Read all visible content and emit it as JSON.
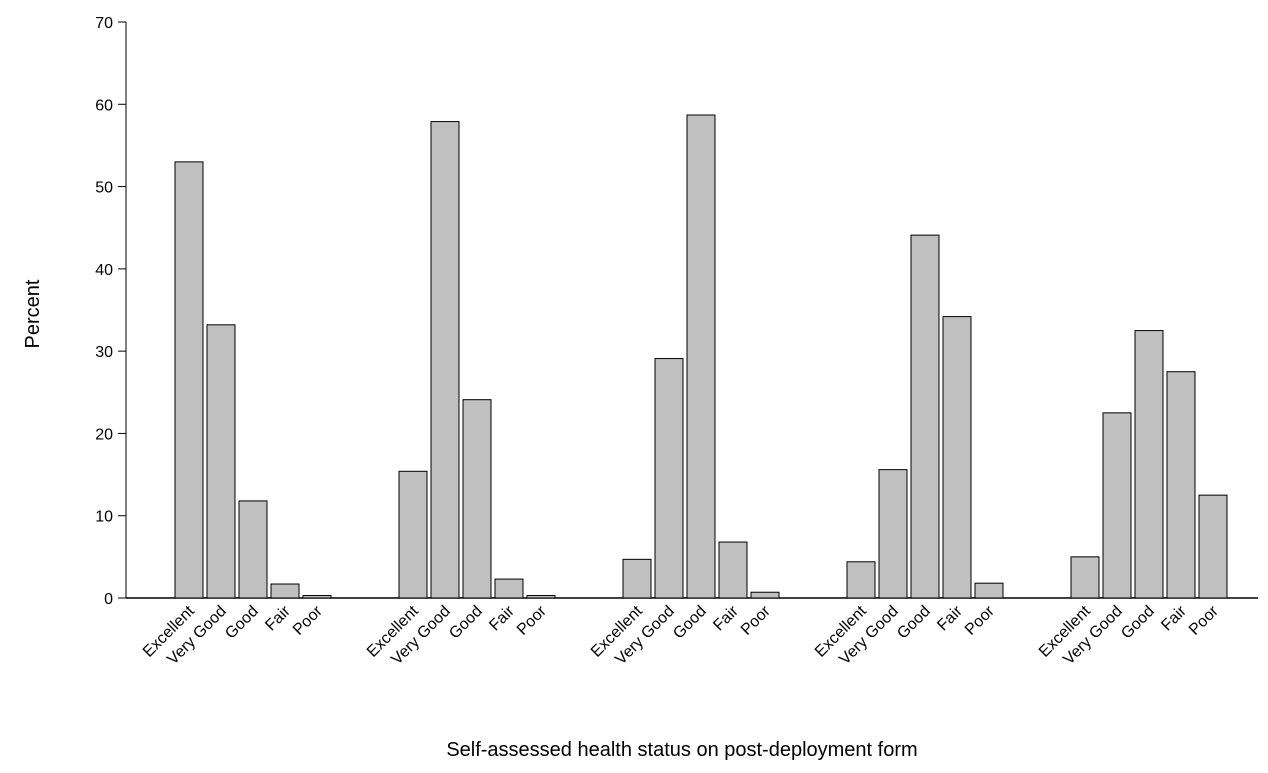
{
  "chart_data": {
    "type": "bar",
    "title": "",
    "xlabel": "Self-assessed health status on post-deployment form",
    "ylabel": "Percent",
    "ylim": [
      0,
      70
    ],
    "yticks": [
      0,
      10,
      20,
      30,
      40,
      50,
      60,
      70
    ],
    "grid": false,
    "categories": [
      "Excellent",
      "Very Good",
      "Good",
      "Fair",
      "Poor"
    ],
    "groups": [
      {
        "values": [
          53.0,
          33.2,
          11.8,
          1.7,
          0.3
        ]
      },
      {
        "values": [
          15.4,
          57.9,
          24.1,
          2.3,
          0.3
        ]
      },
      {
        "values": [
          4.7,
          29.1,
          58.7,
          6.8,
          0.7
        ]
      },
      {
        "values": [
          4.4,
          15.6,
          44.1,
          34.2,
          1.8
        ]
      },
      {
        "values": [
          5.0,
          22.5,
          32.5,
          27.5,
          12.5
        ]
      }
    ],
    "colors": {
      "bar_fill": "#c0c0c0",
      "bar_stroke": "#000000",
      "axis": "#000000"
    }
  }
}
